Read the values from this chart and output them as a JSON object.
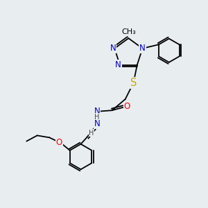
{
  "bg_color": "#e8edf0",
  "atom_colors": {
    "N": "#0000cc",
    "O": "#ff0000",
    "S": "#ccaa00",
    "C": "#000000",
    "H": "#444444"
  },
  "bond_color": "#000000",
  "font_size": 8.5,
  "fig_size": [
    3.0,
    3.0
  ],
  "dpi": 100
}
